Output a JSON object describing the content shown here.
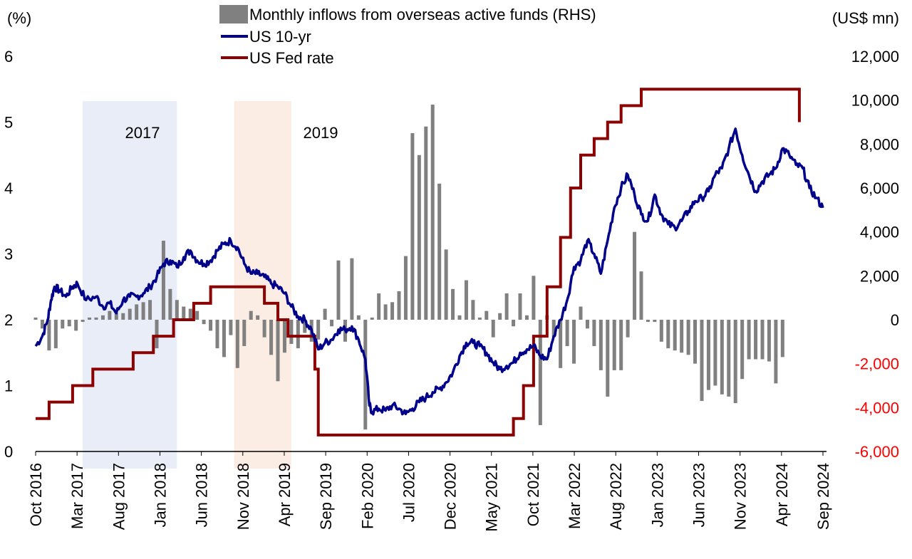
{
  "chart_data": {
    "type": "combo",
    "title": "",
    "left_unit": "(%)",
    "right_unit": "(US$ mn)",
    "left_ylim": [
      0,
      6
    ],
    "left_ticks": [
      "0",
      "1",
      "2",
      "3",
      "4",
      "5",
      "6"
    ],
    "right_ylim": [
      -6000,
      12000
    ],
    "right_ticks": [
      "-6,000",
      "-4,000",
      "-2,000",
      "0",
      "2,000",
      "4,000",
      "6,000",
      "8,000",
      "10,000",
      "12,000"
    ],
    "x_tick_labels": [
      "Oct 2016",
      "Mar 2017",
      "Aug 2017",
      "Jan 2018",
      "Jun 2018",
      "Nov 2018",
      "Apr 2019",
      "Sep 2019",
      "Feb 2020",
      "Jul 2020",
      "Dec 2020",
      "May 2021",
      "Oct 2021",
      "Mar 2022",
      "Aug 2022",
      "Jan 2023",
      "Jun 2023",
      "Nov 2023",
      "Apr 2024",
      "Sep 2024"
    ],
    "legend": [
      {
        "name": "Monthly inflows from overseas active funds (RHS)",
        "kind": "bar",
        "color": "#808080"
      },
      {
        "name": "US 10-yr",
        "kind": "line",
        "color": "#00008b"
      },
      {
        "name": "US Fed rate",
        "kind": "line",
        "color": "#8b0000"
      }
    ],
    "shaded_periods": [
      {
        "label": "2017",
        "start": 7,
        "end": 21,
        "color": "#e8edf8"
      },
      {
        "label": "2019",
        "start": 29.5,
        "end": 38,
        "color": "#fbede4"
      }
    ],
    "colors": {
      "bars": "#808080",
      "us10y": "#00008b",
      "fed": "#8b0000",
      "right_neg": "#ff0000"
    },
    "inflows": [
      {
        "m": 0,
        "v": 100
      },
      {
        "m": 1,
        "v": -400
      },
      {
        "m": 2,
        "v": -1400
      },
      {
        "m": 3,
        "v": -1300
      },
      {
        "m": 4,
        "v": -400
      },
      {
        "m": 5,
        "v": -300
      },
      {
        "m": 6,
        "v": -500
      },
      {
        "m": 7,
        "v": -100
      },
      {
        "m": 8,
        "v": 100
      },
      {
        "m": 9,
        "v": 100
      },
      {
        "m": 10,
        "v": 200
      },
      {
        "m": 11,
        "v": 400
      },
      {
        "m": 12,
        "v": 300
      },
      {
        "m": 13,
        "v": 300
      },
      {
        "m": 14,
        "v": 500
      },
      {
        "m": 15,
        "v": 700
      },
      {
        "m": 16,
        "v": 800
      },
      {
        "m": 17,
        "v": 900
      },
      {
        "m": 18,
        "v": -1300
      },
      {
        "m": 19,
        "v": 3600
      },
      {
        "m": 20,
        "v": 1400
      },
      {
        "m": 21,
        "v": 900
      },
      {
        "m": 22,
        "v": 600
      },
      {
        "m": 23,
        "v": 500
      },
      {
        "m": 24,
        "v": 400
      },
      {
        "m": 25,
        "v": -200
      },
      {
        "m": 26,
        "v": -500
      },
      {
        "m": 27,
        "v": -1300
      },
      {
        "m": 28,
        "v": -1700
      },
      {
        "m": 29,
        "v": -700
      },
      {
        "m": 30,
        "v": -2200
      },
      {
        "m": 31,
        "v": -1200
      },
      {
        "m": 32,
        "v": 400
      },
      {
        "m": 33,
        "v": 200
      },
      {
        "m": 34,
        "v": -800
      },
      {
        "m": 35,
        "v": -1600
      },
      {
        "m": 36,
        "v": -2800
      },
      {
        "m": 37,
        "v": -1500
      },
      {
        "m": 38,
        "v": -1100
      },
      {
        "m": 39,
        "v": -1300
      },
      {
        "m": 40,
        "v": -600
      },
      {
        "m": 41,
        "v": -1000
      },
      {
        "m": 42,
        "v": -900
      },
      {
        "m": 43,
        "v": 500
      },
      {
        "m": 44,
        "v": -300
      },
      {
        "m": 45,
        "v": 2700
      },
      {
        "m": 46,
        "v": -1000
      },
      {
        "m": 47,
        "v": 2800
      },
      {
        "m": 48,
        "v": 200
      },
      {
        "m": 49,
        "v": -5000
      },
      {
        "m": 50,
        "v": 100
      },
      {
        "m": 51,
        "v": 1200
      },
      {
        "m": 52,
        "v": 700
      },
      {
        "m": 53,
        "v": 800
      },
      {
        "m": 54,
        "v": 1300
      },
      {
        "m": 55,
        "v": 2900
      },
      {
        "m": 56,
        "v": 8500
      },
      {
        "m": 57,
        "v": 7500
      },
      {
        "m": 58,
        "v": 8800
      },
      {
        "m": 59,
        "v": 9800
      },
      {
        "m": 60,
        "v": 6200
      },
      {
        "m": 61,
        "v": 3200
      },
      {
        "m": 62,
        "v": 1400
      },
      {
        "m": 63,
        "v": 200
      },
      {
        "m": 64,
        "v": 1800
      },
      {
        "m": 65,
        "v": 900
      },
      {
        "m": 66,
        "v": 100
      },
      {
        "m": 67,
        "v": 400
      },
      {
        "m": 68,
        "v": -800
      },
      {
        "m": 69,
        "v": 300
      },
      {
        "m": 70,
        "v": 1200
      },
      {
        "m": 71,
        "v": -300
      },
      {
        "m": 72,
        "v": 1200
      },
      {
        "m": 73,
        "v": 200
      },
      {
        "m": 74,
        "v": 2000
      },
      {
        "m": 75,
        "v": -4800
      },
      {
        "m": 76,
        "v": 200
      },
      {
        "m": 77,
        "v": -800
      },
      {
        "m": 78,
        "v": -2200
      },
      {
        "m": 79,
        "v": -1200
      },
      {
        "m": 80,
        "v": -2000
      },
      {
        "m": 81,
        "v": 600
      },
      {
        "m": 82,
        "v": -400
      },
      {
        "m": 83,
        "v": -1200
      },
      {
        "m": 84,
        "v": -2300
      },
      {
        "m": 85,
        "v": -3500
      },
      {
        "m": 86,
        "v": -2300
      },
      {
        "m": 87,
        "v": -2300
      },
      {
        "m": 88,
        "v": -800
      },
      {
        "m": 89,
        "v": 4000
      },
      {
        "m": 90,
        "v": 2200
      },
      {
        "m": 91,
        "v": -100
      },
      {
        "m": 92,
        "v": -100
      },
      {
        "m": 93,
        "v": -1000
      },
      {
        "m": 94,
        "v": -1300
      },
      {
        "m": 95,
        "v": -1400
      },
      {
        "m": 96,
        "v": -1500
      },
      {
        "m": 97,
        "v": -1600
      },
      {
        "m": 98,
        "v": -2000
      },
      {
        "m": 99,
        "v": -3700
      },
      {
        "m": 100,
        "v": -3200
      },
      {
        "m": 101,
        "v": -3000
      },
      {
        "m": 102,
        "v": -3400
      },
      {
        "m": 103,
        "v": -3500
      },
      {
        "m": 104,
        "v": -3800
      },
      {
        "m": 105,
        "v": -2700
      },
      {
        "m": 106,
        "v": -1800
      },
      {
        "m": 107,
        "v": -1800
      },
      {
        "m": 108,
        "v": -1800
      },
      {
        "m": 109,
        "v": -1900
      },
      {
        "m": 110,
        "v": -2900
      },
      {
        "m": 111,
        "v": -1700
      }
    ],
    "us10y": [
      {
        "m": 0,
        "v": 1.6
      },
      {
        "m": 1,
        "v": 1.75
      },
      {
        "m": 1.8,
        "v": 2.0
      },
      {
        "m": 2.3,
        "v": 2.3
      },
      {
        "m": 2.8,
        "v": 2.5
      },
      {
        "m": 3.5,
        "v": 2.45
      },
      {
        "m": 4.5,
        "v": 2.35
      },
      {
        "m": 5.5,
        "v": 2.5
      },
      {
        "m": 6.2,
        "v": 2.55
      },
      {
        "m": 7.5,
        "v": 2.3
      },
      {
        "m": 9,
        "v": 2.35
      },
      {
        "m": 10,
        "v": 2.2
      },
      {
        "m": 11,
        "v": 2.25
      },
      {
        "m": 12,
        "v": 2.1
      },
      {
        "m": 13,
        "v": 2.3
      },
      {
        "m": 14,
        "v": 2.35
      },
      {
        "m": 15,
        "v": 2.35
      },
      {
        "m": 16,
        "v": 2.4
      },
      {
        "m": 17,
        "v": 2.5
      },
      {
        "m": 18,
        "v": 2.65
      },
      {
        "m": 19,
        "v": 2.85
      },
      {
        "m": 20,
        "v": 2.9
      },
      {
        "m": 21,
        "v": 2.8
      },
      {
        "m": 22,
        "v": 2.95
      },
      {
        "m": 23,
        "v": 3.05
      },
      {
        "m": 24,
        "v": 2.9
      },
      {
        "m": 25,
        "v": 2.85
      },
      {
        "m": 26,
        "v": 2.9
      },
      {
        "m": 27,
        "v": 3.05
      },
      {
        "m": 28,
        "v": 3.15
      },
      {
        "m": 29,
        "v": 3.2
      },
      {
        "m": 30,
        "v": 3.1
      },
      {
        "m": 31,
        "v": 2.85
      },
      {
        "m": 32,
        "v": 2.7
      },
      {
        "m": 33,
        "v": 2.7
      },
      {
        "m": 34,
        "v": 2.65
      },
      {
        "m": 35,
        "v": 2.55
      },
      {
        "m": 36,
        "v": 2.5
      },
      {
        "m": 37,
        "v": 2.4
      },
      {
        "m": 38,
        "v": 2.2
      },
      {
        "m": 39,
        "v": 2.05
      },
      {
        "m": 40,
        "v": 2.0
      },
      {
        "m": 41,
        "v": 1.85
      },
      {
        "m": 42,
        "v": 1.55
      },
      {
        "m": 43,
        "v": 1.65
      },
      {
        "m": 44,
        "v": 1.7
      },
      {
        "m": 45,
        "v": 1.85
      },
      {
        "m": 46,
        "v": 1.85
      },
      {
        "m": 47,
        "v": 1.9
      },
      {
        "m": 48,
        "v": 1.7
      },
      {
        "m": 49,
        "v": 1.4
      },
      {
        "m": 49.6,
        "v": 0.7
      },
      {
        "m": 50,
        "v": 0.6
      },
      {
        "m": 51,
        "v": 0.65
      },
      {
        "m": 52,
        "v": 0.62
      },
      {
        "m": 53,
        "v": 0.7
      },
      {
        "m": 54,
        "v": 0.65
      },
      {
        "m": 55,
        "v": 0.57
      },
      {
        "m": 56,
        "v": 0.65
      },
      {
        "m": 57,
        "v": 0.75
      },
      {
        "m": 58,
        "v": 0.82
      },
      {
        "m": 59,
        "v": 0.9
      },
      {
        "m": 60,
        "v": 0.95
      },
      {
        "m": 61,
        "v": 1.05
      },
      {
        "m": 62,
        "v": 1.2
      },
      {
        "m": 63,
        "v": 1.45
      },
      {
        "m": 64,
        "v": 1.65
      },
      {
        "m": 65,
        "v": 1.65
      },
      {
        "m": 66,
        "v": 1.6
      },
      {
        "m": 67,
        "v": 1.5
      },
      {
        "m": 68,
        "v": 1.35
      },
      {
        "m": 69,
        "v": 1.25
      },
      {
        "m": 70,
        "v": 1.3
      },
      {
        "m": 71,
        "v": 1.35
      },
      {
        "m": 72,
        "v": 1.5
      },
      {
        "m": 73,
        "v": 1.55
      },
      {
        "m": 74,
        "v": 1.6
      },
      {
        "m": 75,
        "v": 1.45
      },
      {
        "m": 76,
        "v": 1.4
      },
      {
        "m": 77,
        "v": 1.75
      },
      {
        "m": 78,
        "v": 2.0
      },
      {
        "m": 79,
        "v": 2.3
      },
      {
        "m": 80,
        "v": 2.8
      },
      {
        "m": 81,
        "v": 2.9
      },
      {
        "m": 82,
        "v": 3.2
      },
      {
        "m": 83,
        "v": 3.0
      },
      {
        "m": 84,
        "v": 2.7
      },
      {
        "m": 85,
        "v": 3.2
      },
      {
        "m": 86,
        "v": 3.7
      },
      {
        "m": 87,
        "v": 4.0
      },
      {
        "m": 88,
        "v": 4.2
      },
      {
        "m": 89,
        "v": 3.9
      },
      {
        "m": 90,
        "v": 3.6
      },
      {
        "m": 91,
        "v": 3.5
      },
      {
        "m": 92,
        "v": 3.9
      },
      {
        "m": 93,
        "v": 3.6
      },
      {
        "m": 94,
        "v": 3.45
      },
      {
        "m": 95,
        "v": 3.4
      },
      {
        "m": 96,
        "v": 3.5
      },
      {
        "m": 97,
        "v": 3.65
      },
      {
        "m": 98,
        "v": 3.8
      },
      {
        "m": 99,
        "v": 3.85
      },
      {
        "m": 100,
        "v": 3.95
      },
      {
        "m": 101,
        "v": 4.2
      },
      {
        "m": 102,
        "v": 4.3
      },
      {
        "m": 103,
        "v": 4.6
      },
      {
        "m": 104,
        "v": 4.9
      },
      {
        "m": 105,
        "v": 4.5
      },
      {
        "m": 106,
        "v": 4.2
      },
      {
        "m": 107,
        "v": 3.95
      },
      {
        "m": 108,
        "v": 4.1
      },
      {
        "m": 109,
        "v": 4.2
      },
      {
        "m": 110,
        "v": 4.3
      },
      {
        "m": 111,
        "v": 4.6
      },
      {
        "m": 112,
        "v": 4.5
      },
      {
        "m": 113,
        "v": 4.35
      },
      {
        "m": 114,
        "v": 4.3
      },
      {
        "m": 115,
        "v": 4.0
      },
      {
        "m": 116,
        "v": 3.85
      },
      {
        "m": 117,
        "v": 3.7
      }
    ],
    "fed_rate": [
      {
        "m": 0,
        "v": 0.5
      },
      {
        "m": 2,
        "v": 0.5
      },
      {
        "m": 2,
        "v": 0.75
      },
      {
        "m": 5.5,
        "v": 0.75
      },
      {
        "m": 5.5,
        "v": 1.0
      },
      {
        "m": 8.5,
        "v": 1.0
      },
      {
        "m": 8.5,
        "v": 1.25
      },
      {
        "m": 14.5,
        "v": 1.25
      },
      {
        "m": 14.5,
        "v": 1.5
      },
      {
        "m": 17.5,
        "v": 1.5
      },
      {
        "m": 17.5,
        "v": 1.75
      },
      {
        "m": 20.5,
        "v": 1.75
      },
      {
        "m": 20.5,
        "v": 2.0
      },
      {
        "m": 23.5,
        "v": 2.0
      },
      {
        "m": 23.5,
        "v": 2.25
      },
      {
        "m": 26,
        "v": 2.25
      },
      {
        "m": 26,
        "v": 2.5
      },
      {
        "m": 34,
        "v": 2.5
      },
      {
        "m": 34,
        "v": 2.25
      },
      {
        "m": 36,
        "v": 2.25
      },
      {
        "m": 36,
        "v": 2.0
      },
      {
        "m": 37.5,
        "v": 2.0
      },
      {
        "m": 37.5,
        "v": 1.75
      },
      {
        "m": 41.5,
        "v": 1.75
      },
      {
        "m": 41.5,
        "v": 1.25
      },
      {
        "m": 42,
        "v": 1.25
      },
      {
        "m": 42,
        "v": 0.25
      },
      {
        "m": 71,
        "v": 0.25
      },
      {
        "m": 71,
        "v": 0.5
      },
      {
        "m": 72.5,
        "v": 0.5
      },
      {
        "m": 72.5,
        "v": 1.0
      },
      {
        "m": 74,
        "v": 1.0
      },
      {
        "m": 74,
        "v": 1.75
      },
      {
        "m": 76,
        "v": 1.75
      },
      {
        "m": 76,
        "v": 2.5
      },
      {
        "m": 78,
        "v": 2.5
      },
      {
        "m": 78,
        "v": 3.25
      },
      {
        "m": 79.5,
        "v": 3.25
      },
      {
        "m": 79.5,
        "v": 4.0
      },
      {
        "m": 81,
        "v": 4.0
      },
      {
        "m": 81,
        "v": 4.5
      },
      {
        "m": 83,
        "v": 4.5
      },
      {
        "m": 83,
        "v": 4.75
      },
      {
        "m": 85,
        "v": 4.75
      },
      {
        "m": 85,
        "v": 5.0
      },
      {
        "m": 87,
        "v": 5.0
      },
      {
        "m": 87,
        "v": 5.25
      },
      {
        "m": 90,
        "v": 5.25
      },
      {
        "m": 90,
        "v": 5.5
      },
      {
        "m": 113.5,
        "v": 5.5
      },
      {
        "m": 113.5,
        "v": 5.0
      }
    ]
  }
}
